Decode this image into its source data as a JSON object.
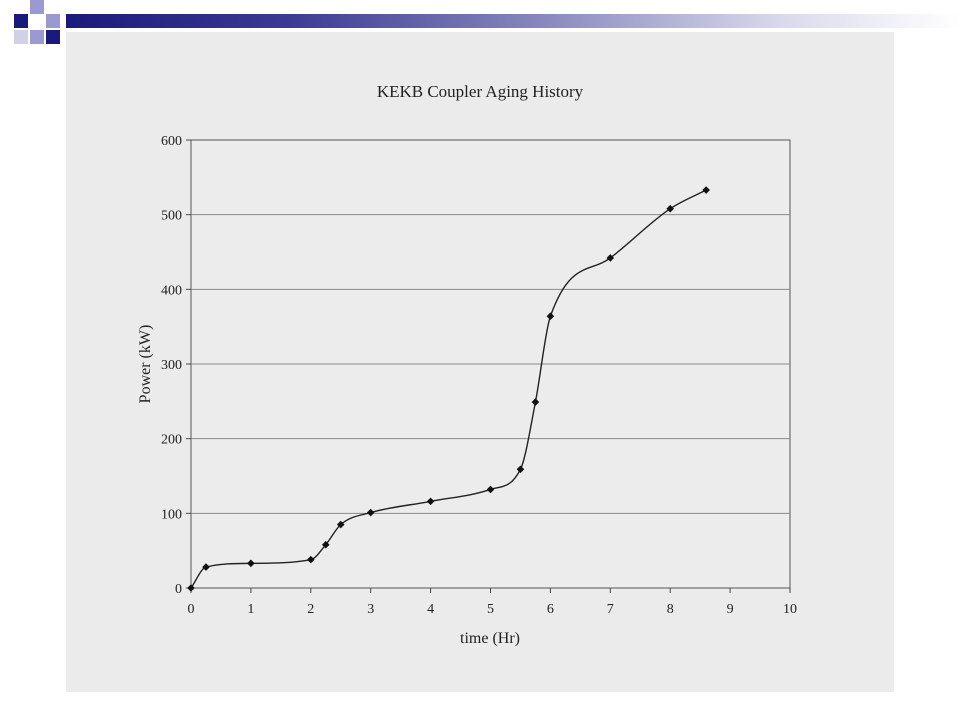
{
  "slide": {
    "accent_dark": "#1a1a7a",
    "accent_light": "#9a9ad0"
  },
  "chart_data": {
    "type": "line",
    "title": "KEKB Coupler Aging History",
    "xlabel": "time (Hr)",
    "ylabel": "Power (kW)",
    "xlim": [
      0,
      10
    ],
    "ylim": [
      0,
      600
    ],
    "xticks": [
      "0",
      "1",
      "2",
      "3",
      "4",
      "5",
      "6",
      "7",
      "8",
      "9",
      "10"
    ],
    "yticks": [
      "0",
      "100",
      "200",
      "300",
      "400",
      "500",
      "600"
    ],
    "grid": "horizontal",
    "marker": "diamond",
    "series": [
      {
        "x": [
          0,
          0.25,
          1,
          2,
          2.25,
          2.5,
          3,
          4,
          5,
          5.5,
          5.75,
          6,
          7,
          8,
          8.6
        ],
        "y": [
          0,
          28,
          33,
          38,
          58,
          85,
          101,
          116,
          132,
          159,
          249,
          364,
          442,
          508,
          533
        ]
      }
    ]
  }
}
